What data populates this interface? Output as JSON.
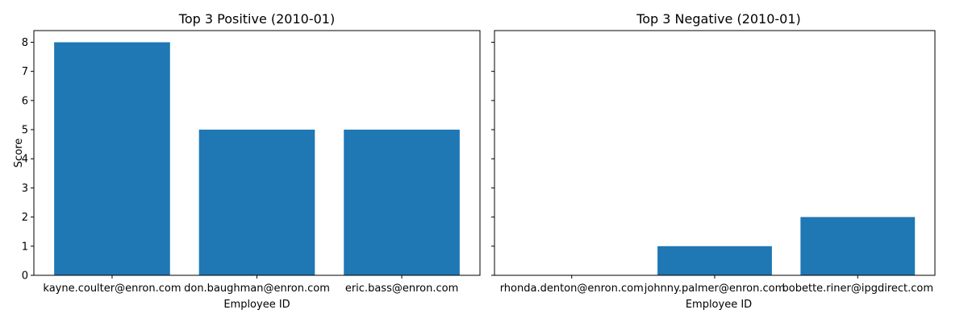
{
  "chart_data": [
    {
      "type": "bar",
      "title": "Top 3 Positive (2010-01)",
      "xlabel": "Employee ID",
      "ylabel": "Score",
      "categories": [
        "kayne.coulter@enron.com",
        "don.baughman@enron.com",
        "eric.bass@enron.com"
      ],
      "values": [
        8,
        5,
        5
      ],
      "ylim": [
        0,
        8.4
      ],
      "yticks": [
        0,
        1,
        2,
        3,
        4,
        5,
        6,
        7,
        8
      ],
      "show_ytick_labels": true,
      "color": "#1f77b4",
      "grid": false
    },
    {
      "type": "bar",
      "title": "Top 3 Negative (2010-01)",
      "xlabel": "Employee ID",
      "ylabel": "",
      "categories": [
        "rhonda.denton@enron.com",
        "johnny.palmer@enron.com",
        "bobette.riner@ipgdirect.com"
      ],
      "values": [
        0,
        1,
        2
      ],
      "ylim": [
        0,
        8.4
      ],
      "yticks": [
        0,
        1,
        2,
        3,
        4,
        5,
        6,
        7,
        8
      ],
      "show_ytick_labels": false,
      "color": "#1f77b4",
      "grid": false
    }
  ]
}
